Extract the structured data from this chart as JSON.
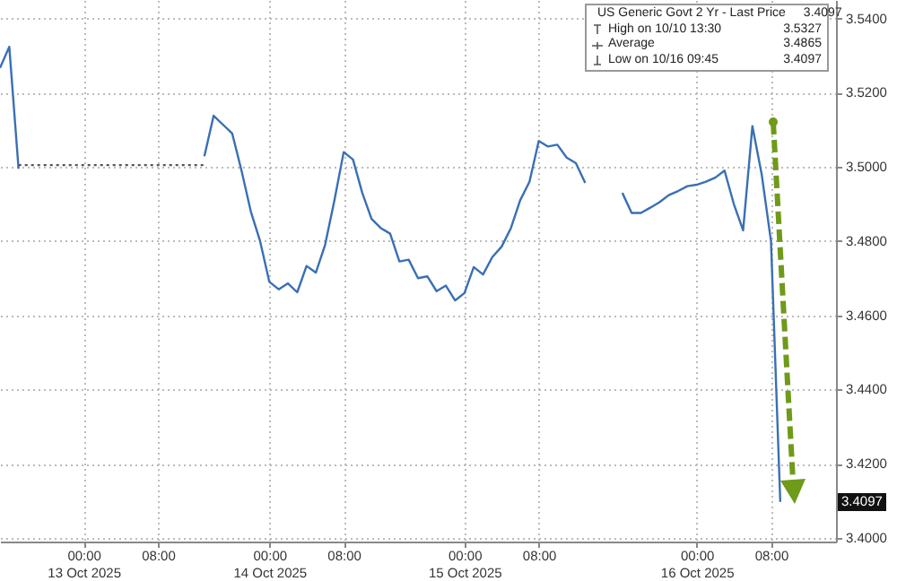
{
  "chart_data": {
    "type": "line",
    "categories": [
      null,
      null,
      null,
      null,
      null,
      null,
      null,
      null,
      null,
      "00:00\n13 Oct 2025",
      null,
      null,
      null,
      null,
      null,
      null,
      null,
      "08:00",
      null,
      null,
      null,
      null,
      null,
      null,
      null,
      null,
      null,
      null,
      null,
      "00:00\n14 Oct 2025",
      null,
      null,
      null,
      null,
      null,
      null,
      null,
      "08:00",
      null,
      null,
      null,
      null,
      null,
      null,
      null,
      null,
      null,
      null,
      null,
      null,
      "00:00\n15 Oct 2025",
      null,
      null,
      null,
      null,
      null,
      null,
      null,
      "08:00",
      null,
      null,
      null,
      null,
      null,
      null,
      null,
      null,
      null,
      null,
      null,
      null,
      null,
      null,
      null,
      null,
      "00:00\n16 Oct 2025",
      null,
      null,
      null,
      null,
      null,
      null,
      null,
      "08:00",
      null,
      null,
      null,
      null,
      null,
      null,
      null
    ],
    "series": [
      {
        "name": "US Generic Govt 2 Yr - Last Price",
        "color": "#3a6fb5",
        "line_style": "solid",
        "values": [
          3.5267,
          3.5324,
          3.4995,
          null,
          null,
          null,
          null,
          null,
          null,
          null,
          null,
          null,
          null,
          null,
          null,
          null,
          null,
          null,
          null,
          null,
          null,
          null,
          3.5029,
          3.5138,
          3.5114,
          3.509,
          3.499,
          3.488,
          3.48,
          3.469,
          3.467,
          3.4686,
          3.4662,
          3.4733,
          3.4715,
          3.479,
          3.491,
          3.504,
          3.502,
          3.493,
          3.486,
          3.4835,
          3.482,
          3.4745,
          3.475,
          3.47,
          3.4705,
          3.4665,
          3.468,
          3.464,
          3.466,
          3.473,
          3.471,
          3.4757,
          3.4785,
          3.4835,
          3.491,
          3.496,
          3.507,
          3.5055,
          3.506,
          3.5025,
          3.501,
          3.4957,
          null,
          null,
          null,
          3.493,
          3.4876,
          3.4876,
          3.489,
          3.4905,
          3.4924,
          3.4935,
          3.4948,
          3.4952,
          3.496,
          3.4971,
          3.499,
          3.49,
          3.4829,
          3.511,
          3.498,
          3.48,
          3.4097,
          null,
          null,
          null,
          null,
          null,
          null
        ]
      },
      {
        "color": "#555555",
        "line_style": "dotted",
        "values": [
          null,
          null,
          3.5005,
          3.5005,
          3.5005,
          3.5005,
          3.5005,
          3.5005,
          3.5005,
          3.5005,
          3.5005,
          3.5005,
          3.5005,
          3.5005,
          3.5005,
          3.5005,
          3.5005,
          3.5005,
          3.5005,
          3.5005,
          3.5005,
          3.5005,
          3.5005,
          null,
          null,
          null,
          null,
          null,
          null,
          null,
          null,
          null,
          null,
          null,
          null,
          null,
          null,
          null,
          null,
          null,
          null,
          null,
          null,
          null,
          null,
          null,
          null,
          null,
          null,
          null,
          null,
          null,
          null,
          null,
          null,
          null,
          null,
          null,
          null,
          null,
          null,
          null,
          null,
          null,
          null,
          null,
          null,
          null,
          null,
          null,
          null,
          null,
          null,
          null,
          null,
          null,
          null,
          null,
          null,
          null,
          null,
          null,
          null,
          null,
          null,
          null,
          null,
          null,
          null,
          null,
          null
        ]
      }
    ],
    "ylim": [
      3.399,
      3.545
    ],
    "yticks": [
      {
        "value": 3.4,
        "label": "3.4000"
      },
      {
        "value": 3.42,
        "label": "3.4200"
      },
      {
        "value": 3.44,
        "label": "3.4400"
      },
      {
        "value": 3.46,
        "label": "3.4600"
      },
      {
        "value": 3.48,
        "label": "3.4800"
      },
      {
        "value": 3.5,
        "label": "3.5000"
      },
      {
        "value": 3.52,
        "label": "3.5200"
      },
      {
        "value": 3.54,
        "label": "3.5400"
      }
    ],
    "grid": true,
    "legend": "top right",
    "annotations": [
      "3.4097",
      "High on 10/10 13:30",
      "3.5327",
      "Average",
      "3.4865",
      "Low on 10/16 09:45",
      "3.4097",
      {
        "text": "3.4097",
        "y": 3.4097
      }
    ]
  }
}
